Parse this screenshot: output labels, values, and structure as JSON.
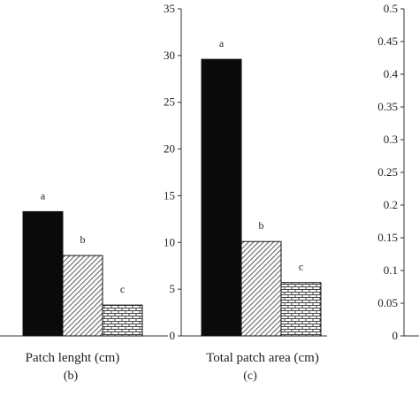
{
  "chart_data": [
    {
      "type": "bar",
      "panel_label": "(b)",
      "xlabel": "Patch lenght (cm)",
      "categories": [
        "a",
        "b",
        "c"
      ],
      "values": [
        13.3,
        8.6,
        3.3
      ],
      "significance_letters": [
        "a",
        "b",
        "c"
      ],
      "bar_fills": [
        "solid-black",
        "diagonal-hatch",
        "brick-pattern"
      ],
      "axis_shared_with": "(c)",
      "ylim": [
        0,
        35
      ],
      "grid": false
    },
    {
      "type": "bar",
      "panel_label": "(c)",
      "xlabel": "Total patch area (cm)",
      "categories": [
        "a",
        "b",
        "c"
      ],
      "values": [
        29.6,
        10.1,
        5.7
      ],
      "significance_letters": [
        "a",
        "b",
        "c"
      ],
      "bar_fills": [
        "solid-black",
        "diagonal-hatch",
        "brick-pattern"
      ],
      "yticks": [
        "0",
        "5",
        "10",
        "15",
        "20",
        "25",
        "30",
        "35"
      ],
      "ylim": [
        0,
        35
      ],
      "grid": false
    },
    {
      "type": "bar",
      "panel_label": "",
      "xlabel": "",
      "categories": [],
      "values": [],
      "yticks": [
        "0",
        "0.05",
        "0.1",
        "0.15",
        "0.2",
        "0.25",
        "0.3",
        "0.35",
        "0.4",
        "0.45",
        "0.5"
      ],
      "ylim": [
        0,
        0.5
      ],
      "grid": false
    }
  ],
  "colors": {
    "solid": "#0a0a0a",
    "hatch": "#444444",
    "brick": "#555555",
    "axis": "#333333"
  }
}
